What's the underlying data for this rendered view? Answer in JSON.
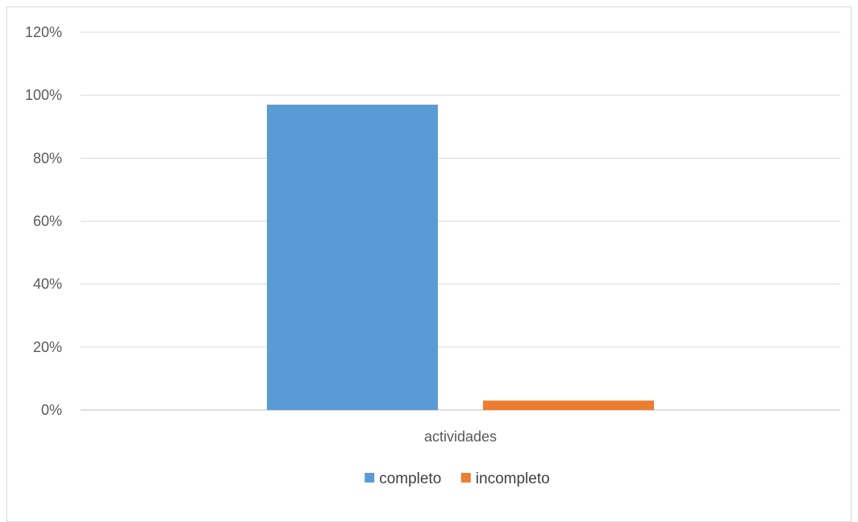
{
  "chart_data": {
    "type": "bar",
    "categories": [
      "actividades"
    ],
    "series": [
      {
        "name": "completo",
        "values": [
          97
        ],
        "color": "#5b9bd5"
      },
      {
        "name": "incompleto",
        "values": [
          3
        ],
        "color": "#ed7d31"
      }
    ],
    "y_ticks": [
      "0%",
      "20%",
      "40%",
      "60%",
      "80%",
      "100%",
      "120%"
    ],
    "ylim": [
      0,
      120
    ],
    "y_unit": "percent",
    "grid": true,
    "legend_position": "bottom",
    "title": "",
    "xlabel": "",
    "ylabel": ""
  }
}
